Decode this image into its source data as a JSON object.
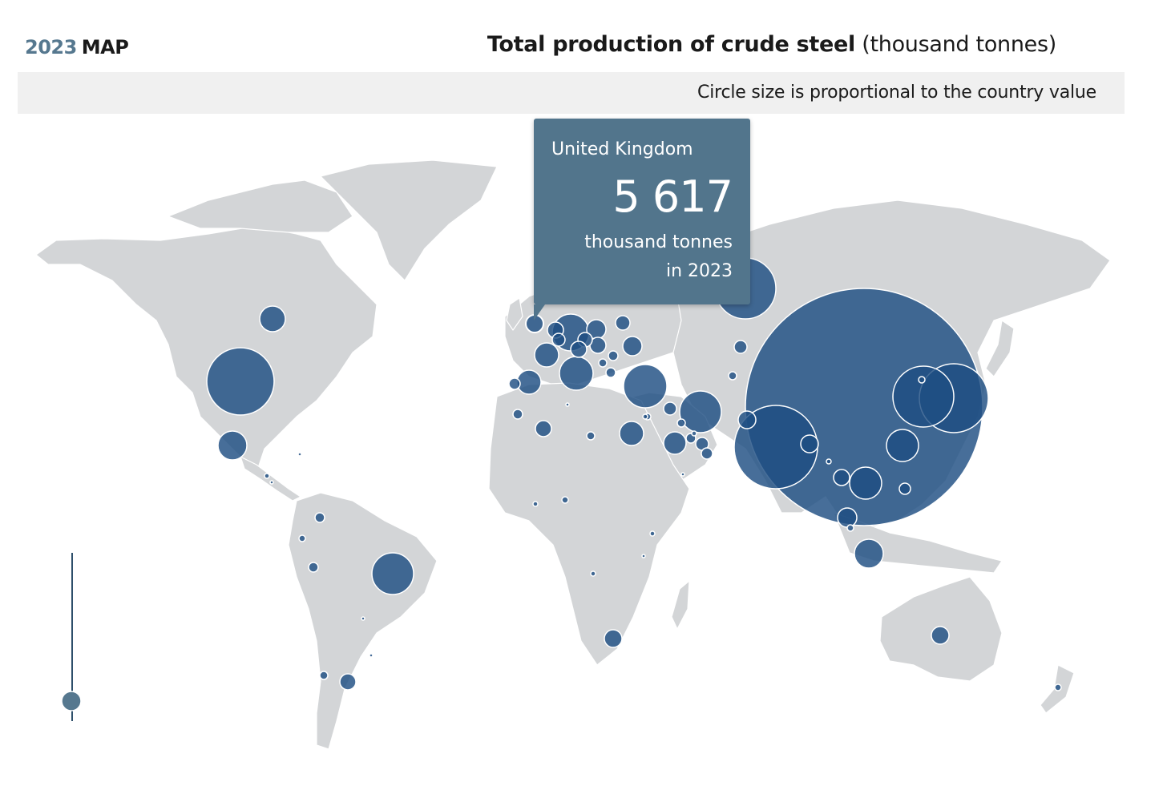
{
  "header": {
    "year": "2023",
    "map_label": "MAP",
    "title_bold": "Total production of crude steel",
    "title_unit": "(thousand tonnes)",
    "subtitle": "Circle size is proportional to the country value"
  },
  "tooltip": {
    "country": "United Kingdom",
    "value": "5 617",
    "unit": "thousand tonnes",
    "year_text": "in 2023"
  },
  "colors": {
    "bubble": "#1f4e82",
    "land": "#d3d5d7",
    "land_light": "#e2e4e6",
    "tooltip_bg": "#52758c",
    "accent": "#56788f"
  }
}
